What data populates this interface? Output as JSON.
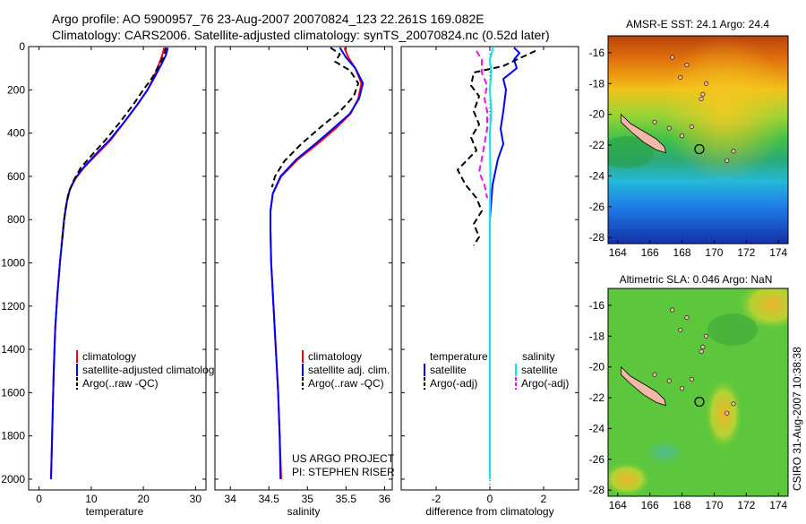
{
  "header": {
    "line1": "Argo profile: AO 5900957_76 23-Aug-2007 20070824_123 22.261S 169.082E",
    "line2": "Climatology: CARS2006. Satellite-adjusted climatology: synTS_20070824.nc (0.52d later)"
  },
  "footer": {
    "project": "US ARGO PROJECT",
    "pi": "PI: STEPHEN RISER",
    "stamp": "CSIRO 31-Aug-2007 10:38:38"
  },
  "colors": {
    "red": "#ff0000",
    "blue": "#0000ff",
    "black": "#000000",
    "cyan": "#00e5ee",
    "magenta": "#ee11ee"
  },
  "chart_data": [
    {
      "type": "line",
      "xlabel": "temperature",
      "xlim": [
        -2,
        32
      ],
      "xticks": [
        0,
        10,
        20,
        30
      ],
      "ylim": [
        0,
        2050
      ],
      "yticks": [
        0,
        200,
        400,
        600,
        800,
        1000,
        1200,
        1400,
        1600,
        1800,
        2000
      ],
      "legend": [
        "climatology",
        "satellite-adjusted climatology",
        "Argo(..raw -QC)"
      ],
      "series": [
        {
          "name": "climatology",
          "color": "#ff0000",
          "dash": "solid",
          "points": [
            [
              24.0,
              5
            ],
            [
              23.6,
              40
            ],
            [
              23.0,
              80
            ],
            [
              22.2,
              130
            ],
            [
              20.8,
              200
            ],
            [
              18.8,
              270
            ],
            [
              16.3,
              350
            ],
            [
              13.8,
              430
            ],
            [
              11.0,
              500
            ],
            [
              8.6,
              560
            ],
            [
              7.0,
              610
            ],
            [
              5.9,
              660
            ],
            [
              5.3,
              720
            ],
            [
              4.8,
              800
            ],
            [
              4.4,
              900
            ],
            [
              4.0,
              1000
            ],
            [
              3.5,
              1150
            ],
            [
              3.1,
              1300
            ],
            [
              2.8,
              1500
            ],
            [
              2.6,
              1700
            ],
            [
              2.4,
              1900
            ],
            [
              2.3,
              2000
            ]
          ]
        },
        {
          "name": "satellite-adjusted climatology",
          "color": "#0000ff",
          "dash": "solid",
          "points": [
            [
              24.7,
              5
            ],
            [
              24.3,
              40
            ],
            [
              23.5,
              80
            ],
            [
              22.4,
              130
            ],
            [
              20.8,
              200
            ],
            [
              18.8,
              270
            ],
            [
              16.3,
              350
            ],
            [
              13.6,
              430
            ],
            [
              10.8,
              500
            ],
            [
              8.5,
              560
            ],
            [
              6.9,
              610
            ],
            [
              5.9,
              660
            ],
            [
              5.3,
              720
            ],
            [
              4.8,
              800
            ],
            [
              4.4,
              900
            ],
            [
              4.0,
              1000
            ],
            [
              3.5,
              1150
            ],
            [
              3.1,
              1300
            ],
            [
              2.8,
              1500
            ],
            [
              2.6,
              1700
            ],
            [
              2.4,
              1900
            ],
            [
              2.3,
              2000
            ]
          ]
        },
        {
          "name": "Argo(..raw -QC)",
          "color": "#000000",
          "dash": "dash",
          "points": [
            [
              24.3,
              5
            ],
            [
              24.0,
              40
            ],
            [
              23.1,
              80
            ],
            [
              21.8,
              140
            ],
            [
              20.0,
              200
            ],
            [
              18.0,
              270
            ],
            [
              15.5,
              350
            ],
            [
              12.8,
              430
            ],
            [
              10.2,
              500
            ],
            [
              8.0,
              560
            ],
            [
              6.6,
              620
            ],
            [
              5.6,
              680
            ],
            [
              5.0,
              760
            ],
            [
              4.6,
              850
            ],
            [
              4.3,
              920
            ]
          ]
        }
      ]
    },
    {
      "type": "line",
      "xlabel": "salinity",
      "xlim": [
        33.8,
        36.1
      ],
      "xticks": [
        34,
        34.5,
        35,
        35.5,
        36
      ],
      "ylim": [
        0,
        2050
      ],
      "legend": [
        "climatology",
        "satellite adj. clim.",
        "Argo(..raw -QC)"
      ],
      "series": [
        {
          "name": "climatology",
          "color": "#ff0000",
          "dash": "solid",
          "points": [
            [
              35.48,
              5
            ],
            [
              35.53,
              50
            ],
            [
              35.62,
              100
            ],
            [
              35.7,
              170
            ],
            [
              35.66,
              240
            ],
            [
              35.56,
              310
            ],
            [
              35.36,
              380
            ],
            [
              35.13,
              450
            ],
            [
              34.88,
              520
            ],
            [
              34.66,
              600
            ],
            [
              34.55,
              680
            ],
            [
              34.52,
              760
            ],
            [
              34.52,
              850
            ],
            [
              34.53,
              1000
            ],
            [
              34.56,
              1200
            ],
            [
              34.59,
              1400
            ],
            [
              34.62,
              1600
            ],
            [
              34.64,
              1800
            ],
            [
              34.66,
              2000
            ]
          ]
        },
        {
          "name": "satellite adj. clim.",
          "color": "#0000ff",
          "dash": "solid",
          "points": [
            [
              35.42,
              5
            ],
            [
              35.5,
              50
            ],
            [
              35.62,
              100
            ],
            [
              35.72,
              170
            ],
            [
              35.67,
              240
            ],
            [
              35.55,
              310
            ],
            [
              35.33,
              380
            ],
            [
              35.1,
              450
            ],
            [
              34.86,
              520
            ],
            [
              34.65,
              600
            ],
            [
              34.55,
              680
            ],
            [
              34.52,
              760
            ],
            [
              34.52,
              850
            ],
            [
              34.53,
              1000
            ],
            [
              34.56,
              1200
            ],
            [
              34.59,
              1400
            ],
            [
              34.62,
              1600
            ],
            [
              34.64,
              1800
            ],
            [
              34.65,
              2000
            ]
          ]
        },
        {
          "name": "Argo(..raw -QC)",
          "color": "#000000",
          "dash": "dash",
          "points": [
            [
              35.3,
              5
            ],
            [
              35.42,
              35
            ],
            [
              35.36,
              70
            ],
            [
              35.55,
              110
            ],
            [
              35.66,
              170
            ],
            [
              35.6,
              230
            ],
            [
              35.42,
              300
            ],
            [
              35.18,
              370
            ],
            [
              34.92,
              450
            ],
            [
              34.7,
              530
            ],
            [
              34.58,
              600
            ],
            [
              34.54,
              650
            ]
          ]
        }
      ]
    },
    {
      "type": "line",
      "xlabel": "difference from climatology",
      "xlim": [
        -3.3,
        3.3
      ],
      "xticks": [
        -2,
        0,
        2
      ],
      "ylim": [
        0,
        2050
      ],
      "legend": [
        "temperature",
        "satellite",
        "Argo(-adj)",
        "salinity",
        "satellite",
        "Argo(-adj)"
      ],
      "series": [
        {
          "name": "temperature satellite",
          "color": "#0000ff",
          "dash": "solid",
          "points": [
            [
              0.9,
              5
            ],
            [
              1.1,
              30
            ],
            [
              0.9,
              60
            ],
            [
              1.0,
              100
            ],
            [
              0.5,
              150
            ],
            [
              0.6,
              200
            ],
            [
              0.5,
              300
            ],
            [
              0.4,
              380
            ],
            [
              0.5,
              450
            ],
            [
              0.3,
              520
            ],
            [
              0.2,
              580
            ],
            [
              0.1,
              640
            ],
            [
              0.05,
              720
            ],
            [
              0.0,
              800
            ],
            [
              0.0,
              1000
            ],
            [
              0.0,
              1600
            ],
            [
              0.0,
              2000
            ]
          ]
        },
        {
          "name": "temperature Argo(-adj)",
          "color": "#000000",
          "dash": "dash",
          "points": [
            [
              1.7,
              20
            ],
            [
              1.0,
              60
            ],
            [
              0.5,
              90
            ],
            [
              -0.6,
              120
            ],
            [
              -0.7,
              180
            ],
            [
              -0.4,
              230
            ],
            [
              -0.6,
              300
            ],
            [
              -0.4,
              360
            ],
            [
              -0.7,
              420
            ],
            [
              -0.5,
              480
            ],
            [
              -1.2,
              570
            ],
            [
              -0.9,
              640
            ],
            [
              -0.5,
              700
            ],
            [
              -0.3,
              760
            ],
            [
              -0.6,
              820
            ],
            [
              -0.4,
              880
            ],
            [
              -0.6,
              920
            ]
          ]
        },
        {
          "name": "salinity satellite",
          "color": "#00e5ee",
          "dash": "solid",
          "points": [
            [
              0.12,
              5
            ],
            [
              0.0,
              60
            ],
            [
              0.05,
              120
            ],
            [
              0.0,
              200
            ],
            [
              0.05,
              300
            ],
            [
              0.0,
              400
            ],
            [
              0.02,
              600
            ],
            [
              0.0,
              800
            ],
            [
              0.0,
              1200
            ],
            [
              0.0,
              1600
            ],
            [
              0.0,
              2000
            ]
          ]
        },
        {
          "name": "salinity Argo(-adj)",
          "color": "#ee11ee",
          "dash": "dash",
          "points": [
            [
              -0.5,
              20
            ],
            [
              -0.3,
              60
            ],
            [
              -0.3,
              120
            ],
            [
              -0.1,
              180
            ],
            [
              -0.2,
              240
            ],
            [
              -0.1,
              300
            ],
            [
              -0.1,
              380
            ],
            [
              -0.2,
              450
            ],
            [
              -0.3,
              520
            ],
            [
              -0.4,
              580
            ],
            [
              -0.2,
              640
            ],
            [
              -0.1,
              700
            ]
          ]
        }
      ]
    }
  ],
  "maps": [
    {
      "title": "AMSR-E SST: 24.1 Argo: 24.4",
      "xticks": [
        164,
        166,
        168,
        170,
        172,
        174
      ],
      "yticks": [
        -16,
        -18,
        -20,
        -22,
        -24,
        -26,
        -28
      ],
      "xlim": [
        163.4,
        174.6
      ],
      "ylim": [
        -28.4,
        -14.9
      ],
      "argo_position": [
        169.08,
        -22.26
      ]
    },
    {
      "title": "Altimetric SLA: 0.046 Argo: NaN",
      "xticks": [
        164,
        166,
        168,
        170,
        172,
        174
      ],
      "yticks": [
        -16,
        -18,
        -20,
        -22,
        -24,
        -26,
        -28
      ],
      "xlim": [
        163.4,
        174.6
      ],
      "ylim": [
        -28.4,
        -14.9
      ],
      "argo_position": [
        169.08,
        -22.26
      ]
    }
  ]
}
